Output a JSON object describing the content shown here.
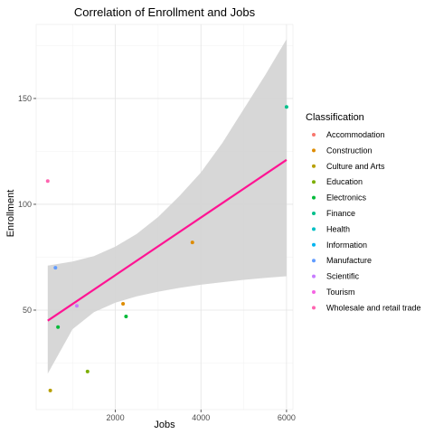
{
  "chart_data": {
    "type": "scatter",
    "title": "Correlation of Enrollment and Jobs",
    "xlabel": "Jobs",
    "ylabel": "Enrollment",
    "xlim": [
      150,
      6150
    ],
    "ylim": [
      3,
      185
    ],
    "xticks": [
      2000,
      4000,
      6000
    ],
    "yticks": [
      50,
      100,
      150
    ],
    "xtick_labels": [
      "2000",
      "4000",
      "6000"
    ],
    "ytick_labels": [
      "50",
      "100",
      "150"
    ],
    "grid": true,
    "legend": {
      "title": "Classification",
      "position": "right",
      "entries": [
        {
          "label": "Accommodation",
          "color": "#F8766D"
        },
        {
          "label": "Construction",
          "color": "#DE8C00"
        },
        {
          "label": "Culture and Arts",
          "color": "#B79F00"
        },
        {
          "label": "Education",
          "color": "#7CAE00"
        },
        {
          "label": "Electronics",
          "color": "#00BA38"
        },
        {
          "label": "Finance",
          "color": "#00C08B"
        },
        {
          "label": "Health",
          "color": "#00BFC4"
        },
        {
          "label": "Information",
          "color": "#00B4F0"
        },
        {
          "label": "Manufacture",
          "color": "#619CFF"
        },
        {
          "label": "Scientific",
          "color": "#C77CFF"
        },
        {
          "label": "Tourism",
          "color": "#F564E3"
        },
        {
          "label": "Wholesale and retail trade",
          "color": "#FF64B0"
        }
      ]
    },
    "points": [
      {
        "x": 420,
        "y": 111,
        "category": "Wholesale and retail trade"
      },
      {
        "x": 600,
        "y": 70,
        "category": "Manufacture"
      },
      {
        "x": 660,
        "y": 42,
        "category": "Electronics"
      },
      {
        "x": 1100,
        "y": 52,
        "category": "Scientific"
      },
      {
        "x": 480,
        "y": 12,
        "category": "Culture and Arts"
      },
      {
        "x": 1350,
        "y": 21,
        "category": "Education"
      },
      {
        "x": 2180,
        "y": 53,
        "category": "Construction"
      },
      {
        "x": 2250,
        "y": 47,
        "category": "Electronics"
      },
      {
        "x": 3800,
        "y": 82,
        "category": "Construction"
      },
      {
        "x": 6000,
        "y": 146,
        "category": "Finance"
      }
    ],
    "trend_line": {
      "color": "#FF1493",
      "x": [
        420,
        6000
      ],
      "y": [
        45,
        121
      ]
    },
    "confidence_band": {
      "color": "#D3D3D3",
      "x": [
        420,
        1000,
        1500,
        2000,
        2500,
        3000,
        3500,
        4000,
        4500,
        5000,
        5500,
        6000
      ],
      "lower": [
        20,
        41,
        49,
        53.5,
        56.5,
        58.7,
        60.5,
        62,
        63.2,
        64.3,
        65.2,
        66
      ],
      "upper": [
        71,
        73,
        75.5,
        80,
        86,
        94,
        104,
        115,
        129,
        145,
        161,
        178
      ]
    }
  }
}
